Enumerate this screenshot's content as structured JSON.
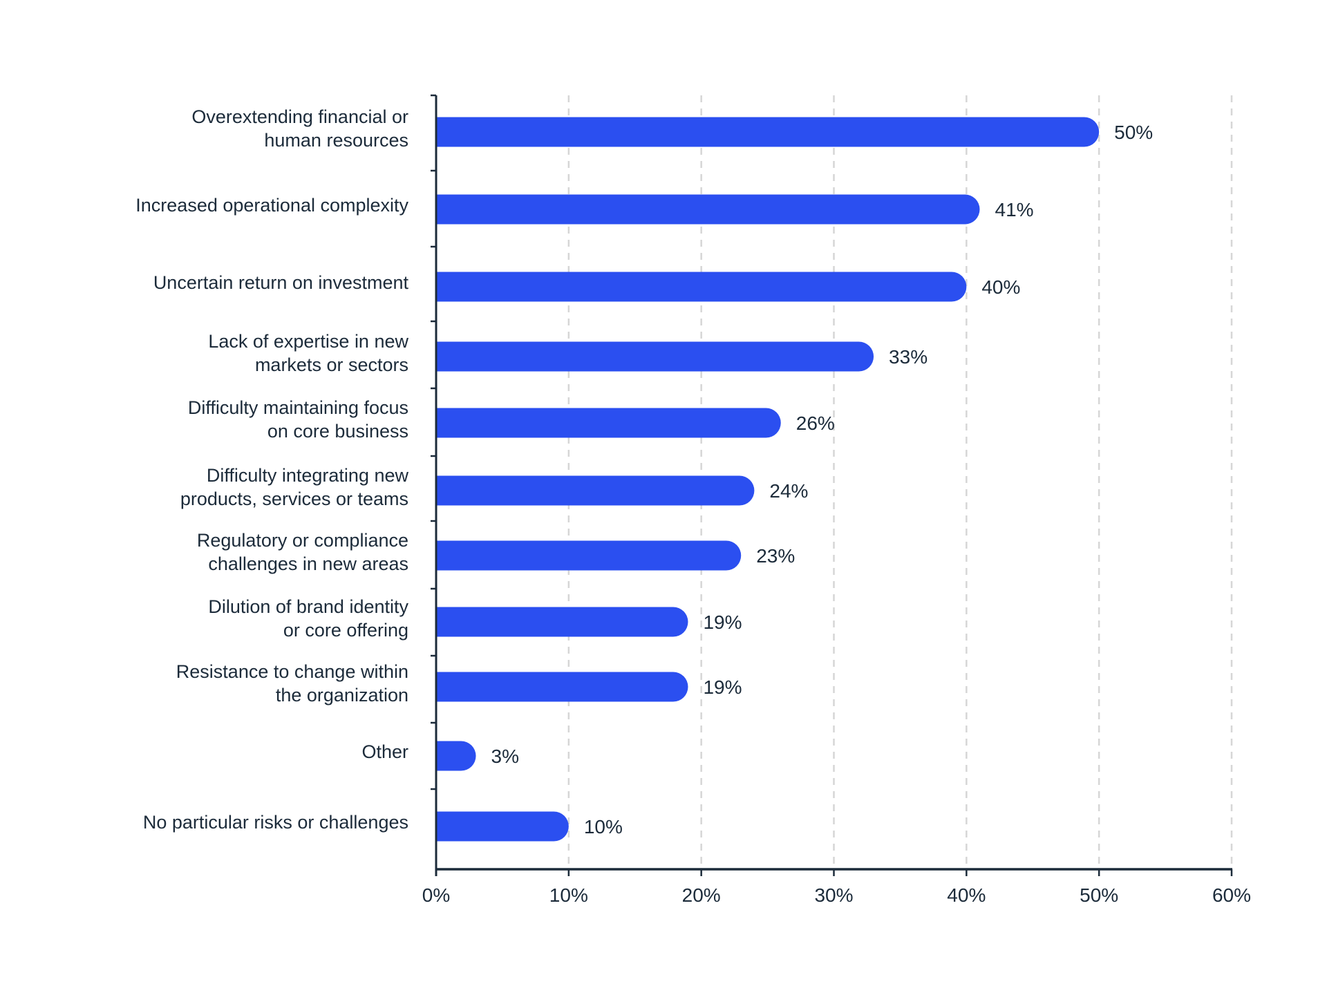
{
  "chart_data": {
    "type": "bar",
    "orientation": "horizontal",
    "title": "",
    "xlabel": "",
    "ylabel": "",
    "xlim": [
      0,
      60
    ],
    "x_ticks": [
      "0%",
      "10%",
      "20%",
      "30%",
      "40%",
      "50%",
      "60%"
    ],
    "grid": "vertical dashed",
    "bar_color": "#2b4ff0",
    "categories": [
      [
        "Overextending financial or",
        "human resources"
      ],
      [
        "Increased operational complexity"
      ],
      [
        "Uncertain return on investment"
      ],
      [
        "Lack of expertise in new",
        "markets or sectors"
      ],
      [
        "Difficulty maintaining focus",
        "on core business"
      ],
      [
        "Difficulty integrating new",
        "products, services or teams"
      ],
      [
        "Regulatory or compliance",
        "challenges in new areas"
      ],
      [
        "Dilution of brand identity",
        "or core offering"
      ],
      [
        "Resistance to change within",
        "the organization"
      ],
      [
        "Other"
      ],
      [
        "No particular risks or challenges"
      ]
    ],
    "values": [
      50,
      41,
      40,
      33,
      26,
      24,
      23,
      19,
      19,
      3,
      10
    ],
    "value_labels": [
      "50%",
      "41%",
      "40%",
      "33%",
      "26%",
      "24%",
      "23%",
      "19%",
      "19%",
      "3%",
      "10%"
    ]
  }
}
